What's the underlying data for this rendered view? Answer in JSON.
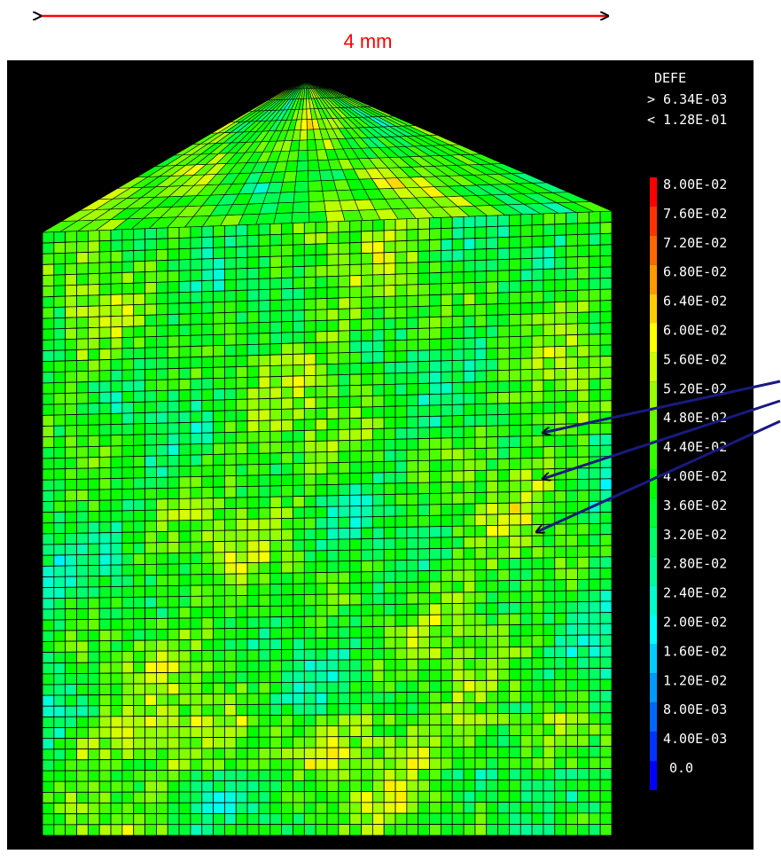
{
  "scale_bar": {
    "label": "4 mm"
  },
  "legend": {
    "title": "DEFE",
    "max_note": "> 6.34E-03",
    "min_note": "< 1.28E-01",
    "labels": [
      "8.00E-02",
      "7.60E-02",
      "7.20E-02",
      "6.80E-02",
      "6.40E-02",
      "6.00E-02",
      "5.60E-02",
      "5.20E-02",
      "4.80E-02",
      "4.40E-02",
      "4.00E-02",
      "3.60E-02",
      "3.20E-02",
      "2.80E-02",
      "2.40E-02",
      "2.00E-02",
      "1.60E-02",
      "1.20E-02",
      "8.00E-03",
      "4.00E-03",
      "0.0"
    ]
  }
}
